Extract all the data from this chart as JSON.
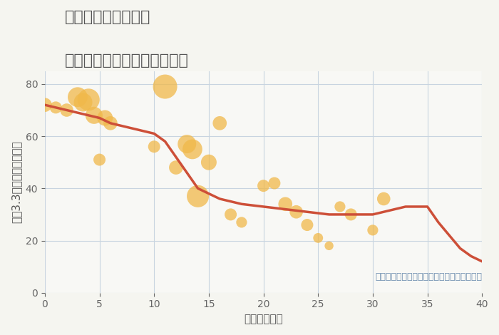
{
  "title_line1": "三重県鈴鹿市徳田町",
  "title_line2": "築年数別中古マンション価格",
  "xlabel": "築年数（年）",
  "ylabel": "平（3.3㎡）単価（万円）",
  "annotation": "円の大きさは、取引のあった物件面積を示す",
  "background_color": "#f5f5f0",
  "plot_bg_color": "#f8f8f5",
  "grid_color": "#c8d4e0",
  "xlim": [
    0,
    40
  ],
  "ylim": [
    0,
    85
  ],
  "xticks": [
    0,
    5,
    10,
    15,
    20,
    25,
    30,
    35,
    40
  ],
  "yticks": [
    0,
    20,
    40,
    60,
    80
  ],
  "scatter_x": [
    0,
    1,
    2,
    3,
    3.5,
    4,
    4.5,
    5,
    5.5,
    6,
    10,
    11,
    12,
    13,
    13.5,
    14,
    15,
    16,
    17,
    18,
    20,
    21,
    22,
    23,
    24,
    25,
    26,
    27,
    28,
    30,
    31
  ],
  "scatter_y": [
    72,
    71,
    70,
    75,
    73,
    74,
    68,
    51,
    67,
    65,
    56,
    79,
    48,
    57,
    55,
    37,
    50,
    65,
    30,
    27,
    41,
    42,
    34,
    31,
    26,
    21,
    18,
    33,
    30,
    24,
    36
  ],
  "scatter_size": [
    200,
    150,
    180,
    400,
    350,
    500,
    300,
    150,
    250,
    200,
    150,
    600,
    200,
    350,
    400,
    500,
    250,
    200,
    150,
    120,
    150,
    150,
    200,
    180,
    150,
    100,
    80,
    120,
    150,
    120,
    180
  ],
  "scatter_color": "#f0b84a",
  "scatter_alpha": 0.75,
  "line_x": [
    0,
    1,
    2,
    3,
    4,
    5,
    6,
    7,
    8,
    9,
    10,
    11,
    12,
    13,
    14,
    15,
    16,
    17,
    18,
    19,
    20,
    21,
    22,
    23,
    24,
    25,
    26,
    27,
    28,
    29,
    30,
    31,
    32,
    33,
    34,
    35,
    36,
    37,
    38,
    39,
    40
  ],
  "line_y": [
    72,
    71,
    70,
    69,
    68,
    67,
    65,
    64,
    63,
    62,
    61,
    58,
    52,
    46,
    40,
    38,
    36,
    35,
    34,
    33.5,
    33,
    32.5,
    32,
    31.5,
    31,
    30.5,
    30,
    30,
    30,
    30,
    30,
    31,
    32,
    33,
    33,
    33,
    27,
    22,
    17,
    14,
    12
  ],
  "line_color": "#cd4f38",
  "line_width": 2.5,
  "title_color": "#555555",
  "title_fontsize": 16,
  "label_fontsize": 11,
  "annotation_color": "#7090b0",
  "annotation_fontsize": 9
}
